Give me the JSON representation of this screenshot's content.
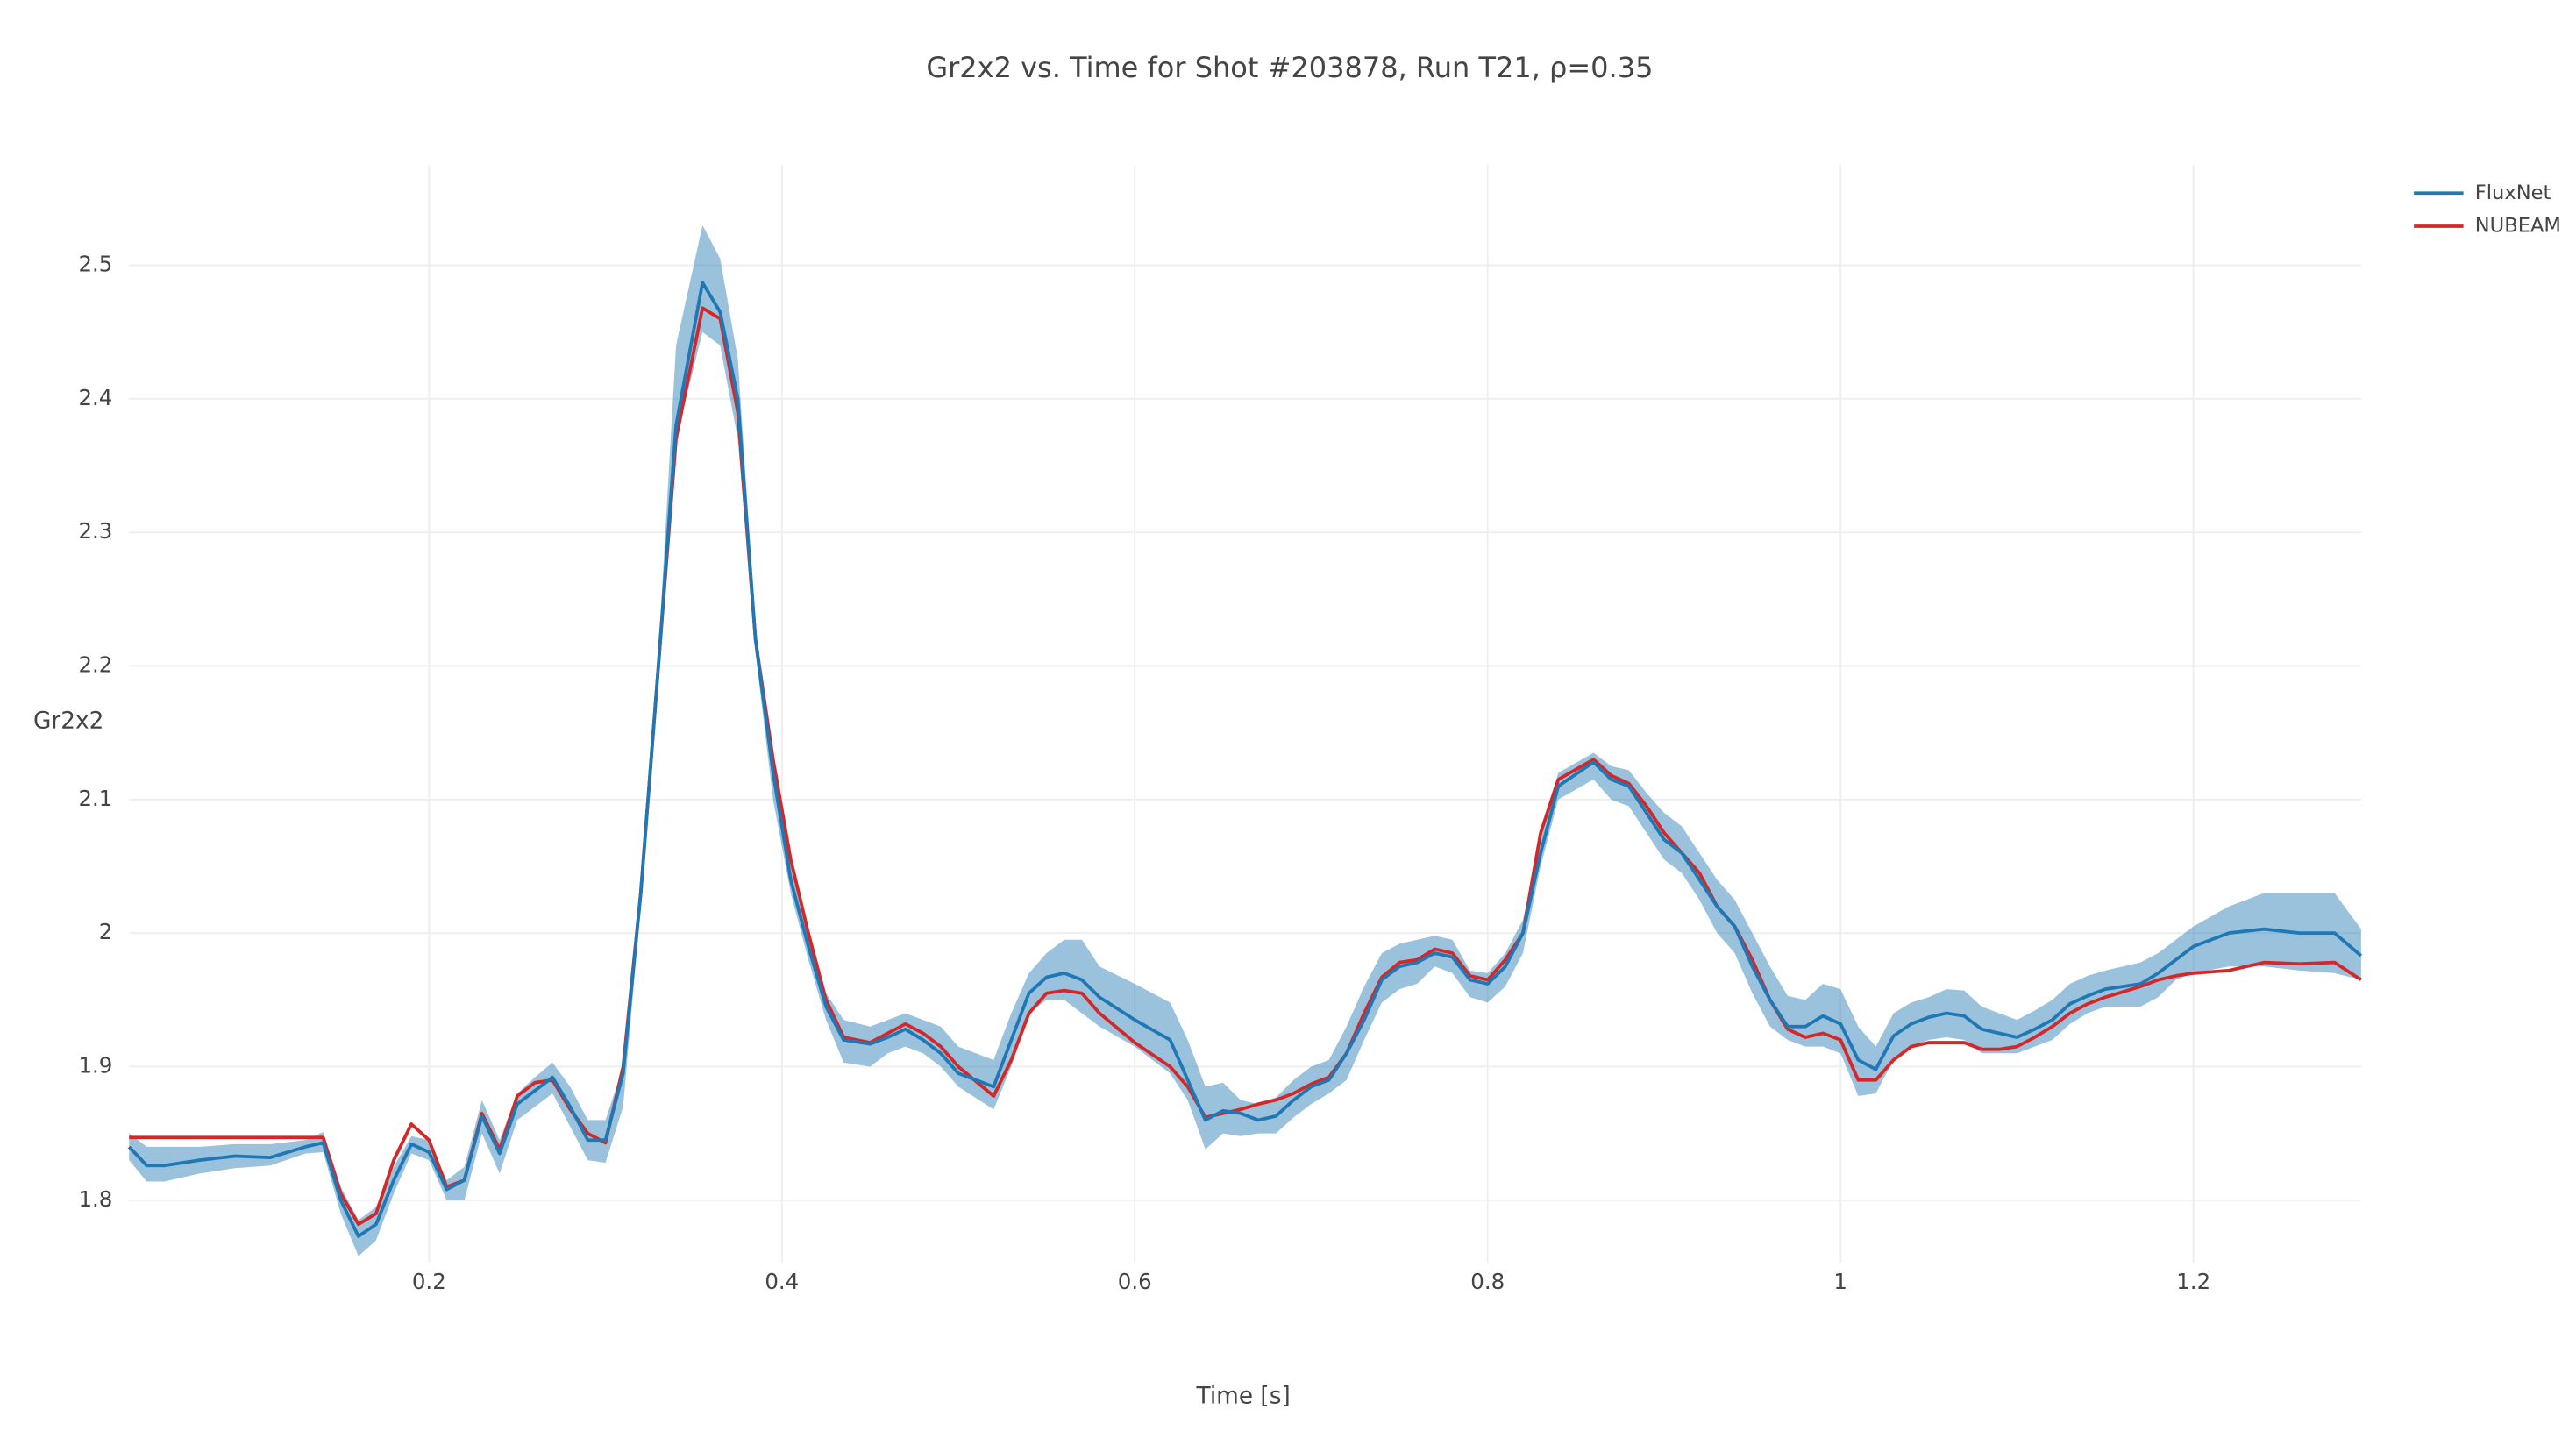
{
  "chart_data": {
    "type": "line",
    "title": "Gr2x2 vs. Time for Shot #203878, Run T21, ρ=0.35",
    "x_label": "Time [s]",
    "y_label": "Gr2x2",
    "x": [
      0.03,
      0.04,
      0.05,
      0.07,
      0.09,
      0.11,
      0.13,
      0.14,
      0.15,
      0.16,
      0.17,
      0.18,
      0.19,
      0.2,
      0.21,
      0.22,
      0.23,
      0.24,
      0.25,
      0.26,
      0.27,
      0.28,
      0.29,
      0.3,
      0.31,
      0.32,
      0.33,
      0.34,
      0.355,
      0.365,
      0.375,
      0.385,
      0.395,
      0.405,
      0.415,
      0.425,
      0.435,
      0.45,
      0.46,
      0.47,
      0.48,
      0.49,
      0.5,
      0.52,
      0.53,
      0.54,
      0.55,
      0.56,
      0.57,
      0.58,
      0.6,
      0.62,
      0.63,
      0.64,
      0.65,
      0.66,
      0.67,
      0.68,
      0.69,
      0.7,
      0.71,
      0.72,
      0.73,
      0.74,
      0.75,
      0.76,
      0.77,
      0.78,
      0.79,
      0.8,
      0.81,
      0.82,
      0.83,
      0.84,
      0.86,
      0.87,
      0.88,
      0.89,
      0.9,
      0.91,
      0.92,
      0.93,
      0.94,
      0.95,
      0.96,
      0.97,
      0.98,
      0.99,
      1.0,
      1.01,
      1.02,
      1.03,
      1.04,
      1.05,
      1.06,
      1.07,
      1.08,
      1.09,
      1.1,
      1.11,
      1.12,
      1.13,
      1.14,
      1.15,
      1.16,
      1.17,
      1.18,
      1.19,
      1.2,
      1.22,
      1.24,
      1.26,
      1.28,
      1.295
    ],
    "series": [
      {
        "name": "FluxNet",
        "color": "#1f77b4",
        "band_opacity": 0.45,
        "values": [
          1.84,
          1.826,
          1.826,
          1.83,
          1.833,
          1.832,
          1.84,
          1.843,
          1.8,
          1.773,
          1.782,
          1.815,
          1.842,
          1.836,
          1.808,
          1.815,
          1.863,
          1.835,
          1.872,
          1.882,
          1.892,
          1.87,
          1.845,
          1.845,
          1.895,
          2.03,
          2.2,
          2.38,
          2.487,
          2.465,
          2.4,
          2.22,
          2.12,
          2.04,
          1.99,
          1.945,
          1.92,
          1.917,
          1.922,
          1.928,
          1.92,
          1.91,
          1.895,
          1.885,
          1.92,
          1.955,
          1.967,
          1.97,
          1.965,
          1.952,
          1.935,
          1.92,
          1.89,
          1.86,
          1.867,
          1.865,
          1.86,
          1.863,
          1.875,
          1.885,
          1.89,
          1.91,
          1.935,
          1.965,
          1.975,
          1.978,
          1.985,
          1.982,
          1.965,
          1.962,
          1.975,
          2.0,
          2.06,
          2.11,
          2.128,
          2.115,
          2.11,
          2.09,
          2.07,
          2.06,
          2.04,
          2.02,
          2.005,
          1.975,
          1.95,
          1.93,
          1.93,
          1.938,
          1.932,
          1.905,
          1.898,
          1.923,
          1.932,
          1.937,
          1.94,
          1.938,
          1.928,
          1.925,
          1.922,
          1.928,
          1.935,
          1.947,
          1.953,
          1.958,
          1.96,
          1.962,
          1.97,
          1.98,
          1.99,
          2.0,
          2.003,
          2.0,
          2.0,
          1.983
        ],
        "lower": [
          1.83,
          1.814,
          1.814,
          1.82,
          1.824,
          1.826,
          1.835,
          1.836,
          1.79,
          1.758,
          1.77,
          1.805,
          1.835,
          1.83,
          1.8,
          1.8,
          1.85,
          1.82,
          1.86,
          1.87,
          1.88,
          1.855,
          1.83,
          1.828,
          1.87,
          2.02,
          2.19,
          2.37,
          2.45,
          2.44,
          2.37,
          2.21,
          2.1,
          2.03,
          1.98,
          1.935,
          1.903,
          1.9,
          1.91,
          1.915,
          1.91,
          1.9,
          1.885,
          1.868,
          1.9,
          1.94,
          1.95,
          1.95,
          1.94,
          1.93,
          1.915,
          1.895,
          1.875,
          1.838,
          1.85,
          1.848,
          1.85,
          1.85,
          1.862,
          1.872,
          1.88,
          1.89,
          1.92,
          1.948,
          1.958,
          1.962,
          1.975,
          1.97,
          1.952,
          1.948,
          1.96,
          1.985,
          2.05,
          2.1,
          2.115,
          2.1,
          2.095,
          2.075,
          2.055,
          2.045,
          2.025,
          2.0,
          1.985,
          1.955,
          1.93,
          1.92,
          1.915,
          1.915,
          1.91,
          1.878,
          1.88,
          1.905,
          1.915,
          1.92,
          1.922,
          1.92,
          1.91,
          1.91,
          1.91,
          1.915,
          1.92,
          1.932,
          1.94,
          1.945,
          1.945,
          1.945,
          1.952,
          1.965,
          1.97,
          1.975,
          1.975,
          1.972,
          1.97,
          1.965
        ],
        "upper": [
          1.85,
          1.84,
          1.84,
          1.84,
          1.842,
          1.842,
          1.845,
          1.851,
          1.81,
          1.785,
          1.795,
          1.825,
          1.848,
          1.845,
          1.815,
          1.825,
          1.875,
          1.845,
          1.88,
          1.892,
          1.903,
          1.885,
          1.86,
          1.86,
          1.9,
          2.04,
          2.21,
          2.44,
          2.53,
          2.505,
          2.43,
          2.23,
          2.13,
          2.05,
          2.0,
          1.955,
          1.935,
          1.93,
          1.935,
          1.94,
          1.935,
          1.93,
          1.915,
          1.905,
          1.94,
          1.97,
          1.985,
          1.995,
          1.995,
          1.975,
          1.962,
          1.948,
          1.92,
          1.885,
          1.888,
          1.875,
          1.872,
          1.877,
          1.89,
          1.9,
          1.905,
          1.93,
          1.96,
          1.985,
          1.992,
          1.995,
          1.998,
          1.995,
          1.972,
          1.97,
          1.985,
          2.01,
          2.07,
          2.12,
          2.135,
          2.125,
          2.122,
          2.105,
          2.09,
          2.08,
          2.06,
          2.04,
          2.025,
          2.0,
          1.975,
          1.953,
          1.95,
          1.962,
          1.958,
          1.93,
          1.915,
          1.94,
          1.948,
          1.952,
          1.958,
          1.957,
          1.945,
          1.94,
          1.935,
          1.942,
          1.95,
          1.962,
          1.968,
          1.972,
          1.975,
          1.978,
          1.985,
          1.995,
          2.005,
          2.02,
          2.03,
          2.03,
          2.03,
          2.003
        ]
      },
      {
        "name": "NUBEAM",
        "color": "#d62728",
        "values": [
          1.847,
          1.847,
          1.847,
          1.847,
          1.847,
          1.847,
          1.847,
          1.847,
          1.805,
          1.782,
          1.79,
          1.83,
          1.857,
          1.845,
          1.81,
          1.815,
          1.865,
          1.838,
          1.878,
          1.888,
          1.89,
          1.868,
          1.85,
          1.843,
          1.9,
          2.03,
          2.2,
          2.37,
          2.468,
          2.46,
          2.39,
          2.22,
          2.13,
          2.055,
          2.0,
          1.95,
          1.922,
          1.918,
          1.925,
          1.932,
          1.925,
          1.915,
          1.9,
          1.878,
          1.905,
          1.94,
          1.955,
          1.957,
          1.955,
          1.94,
          1.918,
          1.9,
          1.885,
          1.862,
          1.865,
          1.868,
          1.872,
          1.875,
          1.88,
          1.887,
          1.892,
          1.91,
          1.94,
          1.967,
          1.978,
          1.98,
          1.988,
          1.985,
          1.968,
          1.965,
          1.98,
          2.0,
          2.075,
          2.115,
          2.13,
          2.118,
          2.112,
          2.095,
          2.075,
          2.06,
          2.045,
          2.02,
          2.005,
          1.98,
          1.95,
          1.928,
          1.922,
          1.925,
          1.92,
          1.89,
          1.89,
          1.905,
          1.915,
          1.918,
          1.918,
          1.918,
          1.913,
          1.913,
          1.915,
          1.922,
          1.93,
          1.94,
          1.947,
          1.952,
          1.956,
          1.96,
          1.965,
          1.968,
          1.97,
          1.972,
          1.978,
          1.977,
          1.978,
          1.965
        ]
      }
    ],
    "xlim": [
      0.03,
      1.295
    ],
    "ylim": [
      1.753,
      2.575
    ],
    "xticks": [
      0.2,
      0.4,
      0.6,
      0.8,
      1,
      1.2
    ],
    "yticks": [
      1.8,
      1.9,
      2,
      2.1,
      2.2,
      2.3,
      2.4,
      2.5
    ],
    "grid": true,
    "legend": "top-right"
  }
}
